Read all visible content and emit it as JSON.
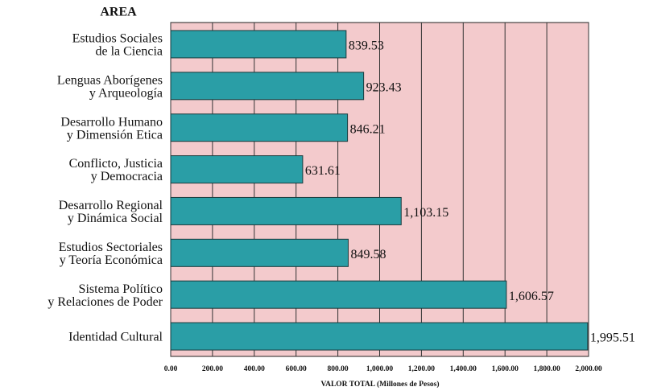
{
  "chart_data": {
    "type": "bar",
    "orientation": "horizontal",
    "category_axis_title": "AREA",
    "xlabel": "VALOR TOTAL (Millones de Pesos)",
    "categories": [
      [
        "Estudios Sociales",
        "de la Ciencia"
      ],
      [
        "Lenguas Aborígenes",
        "y Arqueología"
      ],
      [
        "Desarrollo Humano",
        "y Dimensión Etica"
      ],
      [
        "Conflicto, Justicia",
        "y Democracia"
      ],
      [
        "Desarrollo Regional",
        "y Dinámica Social"
      ],
      [
        "Estudios Sectoriales",
        "y Teoría Económica"
      ],
      [
        "Sistema Político",
        "y Relaciones de Poder"
      ],
      [
        "Identidad Cultural"
      ]
    ],
    "values": [
      839.53,
      923.43,
      846.21,
      631.61,
      1103.15,
      849.58,
      1606.57,
      1995.51
    ],
    "value_labels": [
      "839.53",
      "923.43",
      "846.21",
      "631.61",
      "1,103.15",
      "849.58",
      "1,606.57",
      "1,995.51"
    ],
    "color": "#2a9ea6",
    "background": "#f3cacc",
    "xlim": [
      0,
      2000
    ],
    "xticks": [
      {
        "value": 0,
        "label": "0.00"
      },
      {
        "value": 200,
        "label": "200.00"
      },
      {
        "value": 400,
        "label": "400.00"
      },
      {
        "value": 600,
        "label": "600.00"
      },
      {
        "value": 800,
        "label": "800.00"
      },
      {
        "value": 1000,
        "label": "1,000.00"
      },
      {
        "value": 1200,
        "label": "1,200.00"
      },
      {
        "value": 1400,
        "label": "1,400.00"
      },
      {
        "value": 1600,
        "label": "1,600.00"
      },
      {
        "value": 1800,
        "label": "1,800.00"
      },
      {
        "value": 2000,
        "label": "2,000.00"
      }
    ],
    "grid": true
  }
}
